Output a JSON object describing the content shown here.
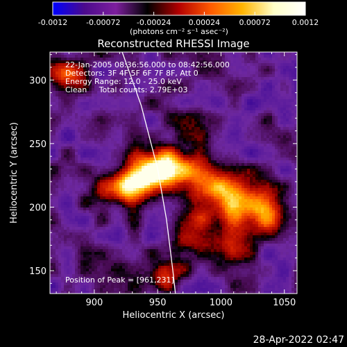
{
  "chart_data": {
    "type": "heatmap",
    "title": "Reconstructed RHESSI Image",
    "xlabel": "Heliocentric X (arcsec)",
    "ylabel": "Heliocentric Y (arcsec)",
    "xlim": [
      865,
      1060
    ],
    "ylim": [
      132,
      322
    ],
    "x_ticks": [
      900,
      950,
      1000,
      1050
    ],
    "y_ticks": [
      150,
      200,
      250,
      300
    ],
    "colorbar": {
      "range": [
        -0.0012,
        0.0012
      ],
      "ticks": [
        "-0.0012",
        "-0.00072",
        "-0.00024",
        "0.00024",
        "0.00072",
        "0.0012"
      ],
      "tick_values": [
        -0.0012,
        -0.00072,
        -0.00024,
        0.00024,
        0.00072,
        0.0012
      ],
      "label": "(photons cm⁻² s⁻¹ asec⁻²)",
      "colors": [
        "#0000ff",
        "#4b0a8c",
        "#7d1f9e",
        "#000000",
        "#b40000",
        "#ff5a00",
        "#ffb400",
        "#ffffc8",
        "#ffffff"
      ]
    },
    "annotations": {
      "time": "22-Jan-2005 08:36:56.000 to 08:42:56.000",
      "detectors": "Detectors: 3F 4F 5F 6F 7F 8F, Att 0",
      "energy": "Energy Range: 12.0 - 25.0 keV",
      "clean": "Clean     Total counts: 2.79E+03",
      "peak": "Position of Peak = [961,231]"
    },
    "peak": [
      961,
      231
    ],
    "limb_line": [
      [
        922,
        322
      ],
      [
        937,
        280
      ],
      [
        950,
        230
      ],
      [
        957,
        190
      ],
      [
        962,
        150
      ],
      [
        964,
        132
      ]
    ],
    "sources": [
      {
        "x": 955,
        "y": 230,
        "sx": 18,
        "sy": 11,
        "amp": 1.0
      },
      {
        "x": 935,
        "y": 222,
        "sx": 14,
        "sy": 9,
        "amp": 0.75
      },
      {
        "x": 920,
        "y": 212,
        "sx": 14,
        "sy": 9,
        "amp": 0.65
      },
      {
        "x": 990,
        "y": 212,
        "sx": 20,
        "sy": 14,
        "amp": 0.55
      },
      {
        "x": 1015,
        "y": 200,
        "sx": 18,
        "sy": 13,
        "amp": 0.55
      },
      {
        "x": 1040,
        "y": 192,
        "sx": 12,
        "sy": 12,
        "amp": 0.45
      },
      {
        "x": 970,
        "y": 172,
        "sx": 12,
        "sy": 12,
        "amp": 0.45
      },
      {
        "x": 955,
        "y": 145,
        "sx": 10,
        "sy": 8,
        "amp": 0.4
      },
      {
        "x": 1000,
        "y": 170,
        "sx": 14,
        "sy": 10,
        "amp": 0.35
      },
      {
        "x": 877,
        "y": 303,
        "sx": 10,
        "sy": 9,
        "amp": 0.5
      },
      {
        "x": 972,
        "y": 270,
        "sx": 14,
        "sy": 9,
        "amp": 0.3
      }
    ],
    "watermark_date": "28-Apr-2022 02:47"
  }
}
